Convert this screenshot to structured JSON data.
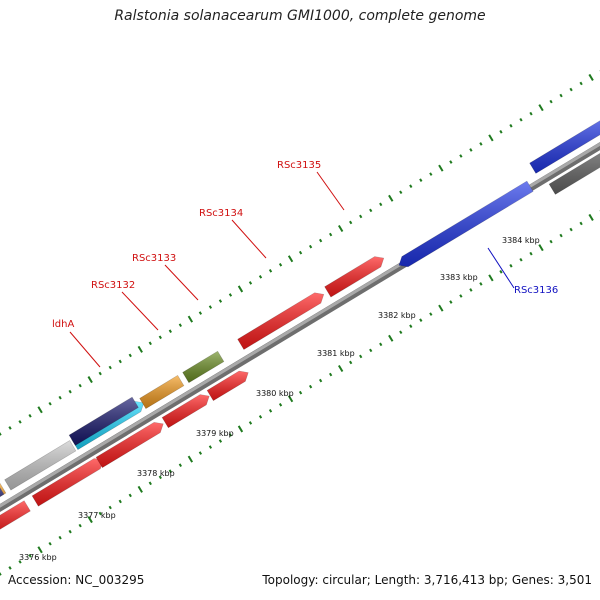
{
  "title": "Ralstonia solanacearum GMI1000, complete genome",
  "accession": "Accession: NC_003295",
  "summary": "Topology: circular; Length: 3,716,413 bp; Genes: 3,501",
  "colors": {
    "backbone": "#8a8a8a",
    "tick": "#1f7a1f",
    "red_gene": "#ff1a1a",
    "blue_gene": "#1f35e6",
    "orange_gene": "#f39a1c",
    "green_gene": "#6b8e23",
    "grey_gene": "#c8c8c8",
    "darkgrey_gene": "#666666",
    "cyan_gene": "#19d6ff",
    "navy_gene": "#17176e",
    "label_red": "#d01010",
    "label_blue": "#1010c0"
  },
  "scale_labels": [
    "3376 kbp",
    "3377 kbp",
    "3378 kbp",
    "3379 kbp",
    "3380 kbp",
    "3381 kbp",
    "3382 kbp",
    "3383 kbp",
    "3384 kbp"
  ],
  "gene_labels": [
    {
      "text": "ldhA",
      "color": "label_red"
    },
    {
      "text": "RSc3132",
      "color": "label_red"
    },
    {
      "text": "RSc3133",
      "color": "label_red"
    },
    {
      "text": "RSc3134",
      "color": "label_red"
    },
    {
      "text": "RSc3135",
      "color": "label_red"
    },
    {
      "text": "RSc3136",
      "color": "label_blue"
    }
  ]
}
